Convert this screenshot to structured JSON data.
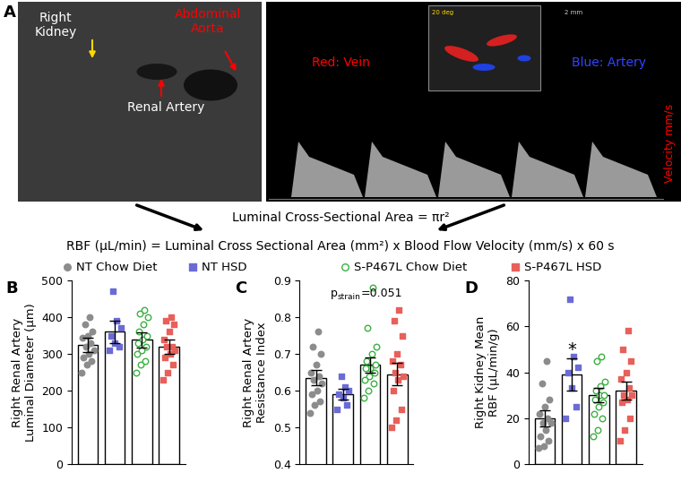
{
  "panel_a": {
    "letter": "A",
    "left_image": {
      "kidney_label": "Right\nKidney",
      "aorta_label": "Abdominal\nAorta",
      "renal_label": "Renal Artery"
    },
    "right_image": {
      "vein_label": "Red: Vein",
      "artery_label": "Blue: Artery",
      "velocity_label": "Velocity mm/s",
      "angle_label": "20 deg",
      "scale_label": "2 mm"
    },
    "formula_area": "Luminal Cross-Sectional Area = πr²",
    "formula_rbf": "RBF (µL/min) = Luminal Cross Sectional Area (mm²) x Blood Flow Velocity (mm/s) x 60 s"
  },
  "groups": [
    {
      "name": "NT Chow Diet",
      "color": "#8c8c8c",
      "marker": "circle"
    },
    {
      "name": "NT HSD",
      "color": "#6b6bd6",
      "marker": "square"
    },
    {
      "name": "S-P467L Chow Diet",
      "color": "#3cb043",
      "marker": "open circle"
    },
    {
      "name": "S-P467L HSD",
      "color": "#e8605a",
      "marker": "square"
    }
  ],
  "chart_data": [
    {
      "type": "bar",
      "letter": "B",
      "ylabel": "Right Renal Artery\nLuminal Diameter (µm)",
      "categories": [
        null,
        null,
        null,
        null
      ],
      "values": [
        325,
        360,
        338,
        320
      ],
      "error": [
        20,
        30,
        20,
        20
      ],
      "points": [
        [
          400,
          380,
          350,
          345,
          330,
          320,
          310,
          300,
          290,
          280,
          270,
          250,
          360
        ],
        [
          470,
          390,
          370,
          350,
          320,
          310,
          330
        ],
        [
          420,
          410,
          400,
          380,
          360,
          340,
          330,
          320,
          310,
          300,
          280,
          270,
          250,
          350
        ],
        [
          400,
          390,
          380,
          360,
          340,
          320,
          310,
          300,
          290,
          270,
          250,
          230,
          320
        ]
      ],
      "ylim": [
        0,
        500
      ],
      "yticks": [
        0,
        100,
        200,
        300,
        400,
        500
      ],
      "tick_labels": "y"
    },
    {
      "type": "bar",
      "letter": "C",
      "ylabel": "Right Renal Artery\nResistance Index",
      "annotation": [
        "p",
        "strain",
        "=0.051"
      ],
      "categories": [
        null,
        null,
        null,
        null
      ],
      "values": [
        0.635,
        0.59,
        0.67,
        0.645
      ],
      "error": [
        0.02,
        0.015,
        0.02,
        0.03
      ],
      "points": [
        [
          0.76,
          0.72,
          0.7,
          0.67,
          0.65,
          0.64,
          0.62,
          0.6,
          0.59,
          0.57,
          0.56,
          0.54,
          0.63
        ],
        [
          0.64,
          0.61,
          0.6,
          0.59,
          0.58,
          0.56,
          0.55
        ],
        [
          0.88,
          0.77,
          0.72,
          0.7,
          0.68,
          0.67,
          0.66,
          0.65,
          0.64,
          0.63,
          0.62,
          0.6,
          0.58,
          0.66
        ],
        [
          0.82,
          0.79,
          0.75,
          0.7,
          0.68,
          0.67,
          0.65,
          0.63,
          0.6,
          0.55,
          0.52,
          0.5,
          0.64
        ]
      ],
      "ylim": [
        0.4,
        0.9
      ],
      "yticks": [
        0.4,
        0.5,
        0.6,
        0.7,
        0.8,
        0.9
      ],
      "tick_labels": "y"
    },
    {
      "type": "bar",
      "letter": "D",
      "ylabel": "Right Kidney Mean\nRBF (µL/min/g)",
      "significance": {
        "text": "*",
        "category": 1
      },
      "categories": [
        null,
        null,
        null,
        null
      ],
      "values": [
        20,
        39,
        30,
        32
      ],
      "error": [
        3.5,
        7,
        3,
        4
      ],
      "points": [
        [
          45,
          35,
          28,
          25,
          22,
          20,
          18,
          15,
          12,
          10,
          8,
          7,
          18
        ],
        [
          72,
          47,
          42,
          40,
          33,
          25,
          20
        ],
        [
          47,
          45,
          36,
          34,
          32,
          30,
          30,
          28,
          27,
          25,
          22,
          20,
          15,
          12
        ],
        [
          58,
          50,
          45,
          40,
          37,
          33,
          30,
          28,
          27,
          20,
          15,
          10,
          30
        ]
      ],
      "ylim": [
        0,
        80
      ],
      "yticks": [
        0,
        20,
        40,
        60,
        80
      ],
      "tick_labels": "y"
    }
  ]
}
